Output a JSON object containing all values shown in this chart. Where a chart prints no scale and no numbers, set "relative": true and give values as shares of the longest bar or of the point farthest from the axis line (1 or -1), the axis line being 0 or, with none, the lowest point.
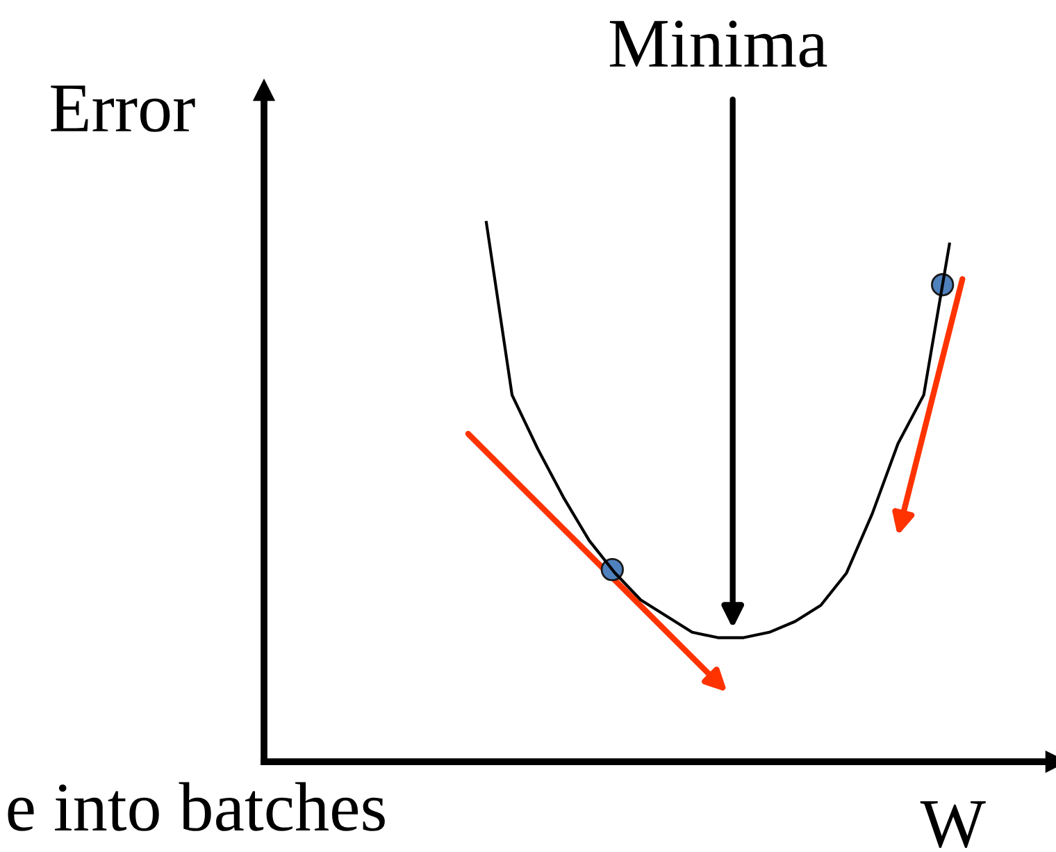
{
  "chart_data": {
    "type": "line",
    "relative": true,
    "xlabel": "W",
    "ylabel": "Error",
    "color": "#000000",
    "categories": [
      null,
      null,
      null,
      null,
      null,
      null,
      null,
      null,
      null,
      null,
      null,
      null,
      null,
      null,
      null,
      null,
      null,
      null,
      null
    ],
    "values": [
      1.0,
      0.68,
      0.58,
      0.49,
      0.41,
      0.35,
      0.3,
      0.27,
      0.24,
      0.23,
      0.23,
      0.24,
      0.26,
      0.29,
      0.35,
      0.46,
      0.59,
      0.68,
      0.96
    ],
    "annotations": [
      "Minima",
      "e into batches"
    ],
    "grid": false
  }
}
